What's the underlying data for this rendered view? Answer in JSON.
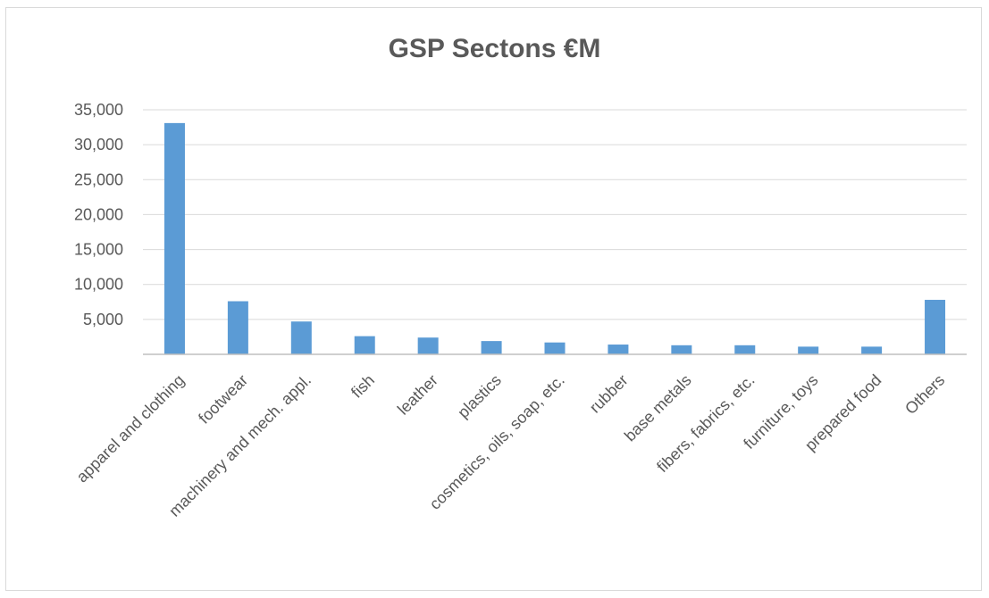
{
  "chart_data": {
    "type": "bar",
    "title": "GSP Sectons €M",
    "xlabel": "",
    "ylabel": "",
    "ylim": [
      0,
      35000
    ],
    "yticks": [
      5000,
      10000,
      15000,
      20000,
      25000,
      30000,
      35000
    ],
    "ytick_labels": [
      "5,000",
      "10,000",
      "15,000",
      "20,000",
      "25,000",
      "30,000",
      "35,000"
    ],
    "grid": true,
    "legend": "none",
    "bar_color": "#5b9bd5",
    "categories": [
      "apparel and clothing",
      "footwear",
      "machinery and mech. appl.",
      "fish",
      "leather",
      "plastics",
      "cosmetics, oils, soap, etc.",
      "rubber",
      "base metals",
      "fibers, fabrics, etc.",
      "furniture, toys",
      "prepared food",
      "Others"
    ],
    "values": [
      33100,
      7600,
      4700,
      2600,
      2400,
      1900,
      1700,
      1400,
      1300,
      1300,
      1100,
      1100,
      7800
    ]
  }
}
